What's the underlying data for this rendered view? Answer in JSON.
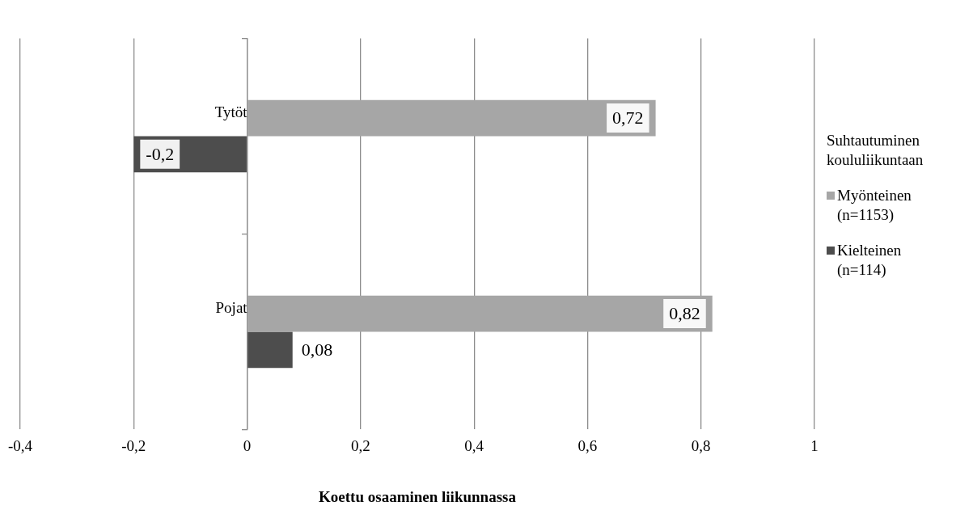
{
  "chart_data": {
    "type": "bar",
    "orientation": "horizontal",
    "xlabel": "Koettu osaaminen liikunnassa",
    "legend_title": "Suhtautuminen koululiikuntaan",
    "categories": [
      "Tytöt",
      "Pojat"
    ],
    "series": [
      {
        "name": "Myönteinen (n=1153)",
        "color": "#a6a6a6",
        "values": [
          0.72,
          0.82
        ],
        "value_labels": [
          "0,72",
          "0,82"
        ]
      },
      {
        "name": "Kielteinen (n=114)",
        "color": "#4d4d4d",
        "values": [
          -0.2,
          0.08
        ],
        "value_labels": [
          "-0,2",
          "0,08"
        ]
      }
    ],
    "xlim": [
      -0.4,
      1
    ],
    "xticks": [
      {
        "value": -0.4,
        "label": "-0,4"
      },
      {
        "value": -0.2,
        "label": "-0,2"
      },
      0,
      {
        "value": 0.2,
        "label": "0,2"
      },
      {
        "value": 0.4,
        "label": "0,4"
      },
      {
        "value": 0.6,
        "label": "0,6"
      },
      {
        "value": 0.8,
        "label": "0,8"
      },
      1
    ],
    "grid": "x",
    "legend": "right"
  }
}
